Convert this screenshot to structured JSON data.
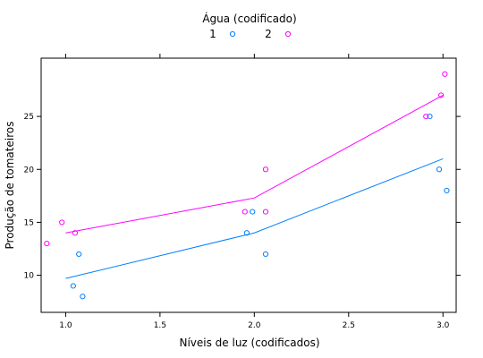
{
  "chart_data": {
    "type": "scatter",
    "title": "Água (codificado)",
    "xlabel": "Níveis de luz (codificados)",
    "ylabel": "Produção de tomateiros",
    "xlim": [
      0.87,
      3.07
    ],
    "ylim": [
      6.5,
      30.5
    ],
    "x_ticks": [
      1.0,
      1.5,
      2.0,
      2.5,
      3.0
    ],
    "x_tick_labels": [
      "1.0",
      "1.5",
      "2.0",
      "2.5",
      "3.0"
    ],
    "y_ticks": [
      10,
      15,
      20,
      25
    ],
    "y_tick_labels": [
      "10",
      "15",
      "20",
      "25"
    ],
    "legend_position": "top",
    "series": [
      {
        "name": "1",
        "color": "#0080ff",
        "points": [
          [
            1.04,
            9
          ],
          [
            1.07,
            12
          ],
          [
            1.09,
            8
          ],
          [
            1.99,
            16
          ],
          [
            1.96,
            14
          ],
          [
            2.06,
            12
          ],
          [
            2.93,
            25
          ],
          [
            2.98,
            20
          ],
          [
            3.02,
            18
          ]
        ],
        "line": [
          [
            1.0,
            9.7
          ],
          [
            2.0,
            14.0
          ],
          [
            3.0,
            21.0
          ]
        ]
      },
      {
        "name": "2",
        "color": "#ff00ff",
        "points": [
          [
            0.9,
            13
          ],
          [
            0.98,
            15
          ],
          [
            1.05,
            14
          ],
          [
            1.95,
            16
          ],
          [
            2.06,
            16
          ],
          [
            2.06,
            20
          ],
          [
            2.91,
            25
          ],
          [
            2.99,
            27
          ],
          [
            3.01,
            29
          ]
        ],
        "line": [
          [
            1.0,
            14.0
          ],
          [
            2.0,
            17.3
          ],
          [
            3.0,
            27.0
          ]
        ]
      }
    ]
  }
}
